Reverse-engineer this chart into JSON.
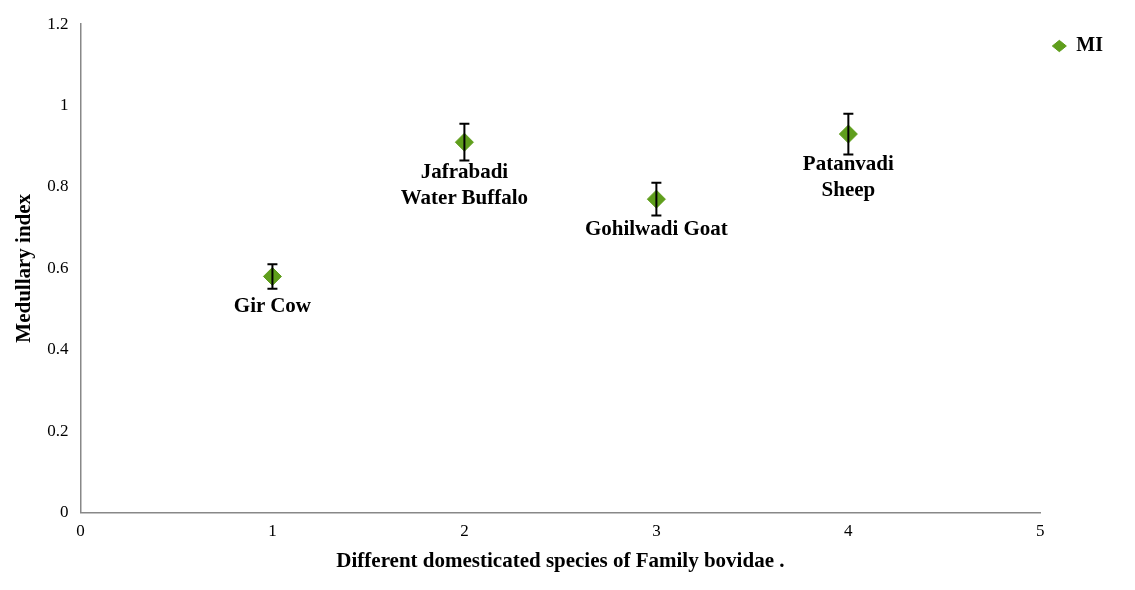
{
  "chart_data": {
    "type": "scatter",
    "xlabel": "Different domesticated species of Family bovidae .",
    "ylabel": "Medullary index",
    "x": [
      1,
      2,
      3,
      4
    ],
    "series": [
      {
        "name": "MI",
        "color": "#5f9e1c",
        "values": [
          0.58,
          0.91,
          0.77,
          0.93
        ],
        "errors": [
          0.03,
          0.045,
          0.04,
          0.05
        ]
      }
    ],
    "annotations": [
      {
        "text": "Gir Cow",
        "x": 1,
        "y": 0.58
      },
      {
        "text": "Jafrabadi\nWater Buffalo",
        "x": 2,
        "y": 0.91
      },
      {
        "text": "Gohilwadi Goat",
        "x": 3,
        "y": 0.77
      },
      {
        "text": "Patanvadi\nSheep",
        "x": 4,
        "y": 0.93
      }
    ],
    "xlim": [
      0,
      5
    ],
    "xticks": [
      0,
      1,
      2,
      3,
      4,
      5
    ],
    "ylim": [
      0,
      1.2
    ],
    "yticks": [
      0,
      0.2,
      0.4,
      0.6,
      0.8,
      1,
      1.2
    ],
    "grid": false,
    "legend": "top right",
    "marker": "diamond"
  }
}
